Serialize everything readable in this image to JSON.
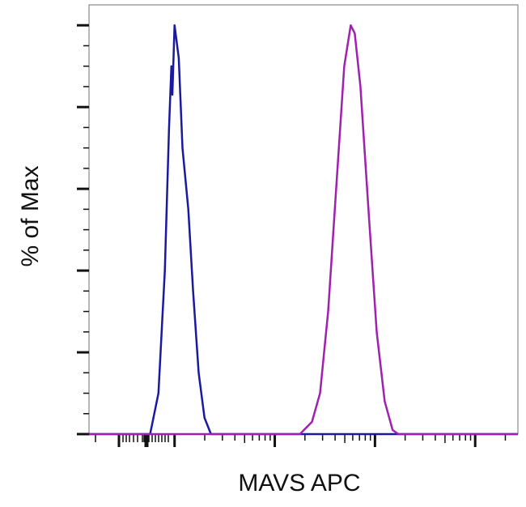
{
  "chart_data": {
    "type": "line",
    "title": "",
    "xlabel": "MAVS APC",
    "ylabel": "% of Max",
    "x_scale": "log",
    "xlim": [
      14,
      267000
    ],
    "ylim": [
      0,
      105
    ],
    "y_major_ticks": [
      0,
      20,
      40,
      60,
      80,
      100
    ],
    "tick_labels_shown": false,
    "grid": false,
    "legend": "none",
    "series": [
      {
        "color": "#1a1aa0",
        "x": [
          14,
          57,
          69,
          80,
          88,
          93,
          95,
          100,
          110,
          120,
          137,
          153,
          174,
          199,
          231,
          267000
        ],
        "y": [
          0,
          0,
          10,
          40,
          75,
          90,
          83,
          100,
          92,
          70,
          55,
          35,
          15,
          4,
          0,
          0
        ]
      },
      {
        "color": "#a020b0",
        "x": [
          14,
          1780,
          2350,
          2830,
          3410,
          4100,
          4940,
          5730,
          6290,
          7160,
          8610,
          10400,
          12500,
          15000,
          17100,
          267000
        ],
        "y": [
          0,
          0,
          3,
          10,
          30,
          60,
          90,
          100,
          98,
          85,
          55,
          25,
          8,
          1,
          0,
          0
        ]
      }
    ]
  }
}
